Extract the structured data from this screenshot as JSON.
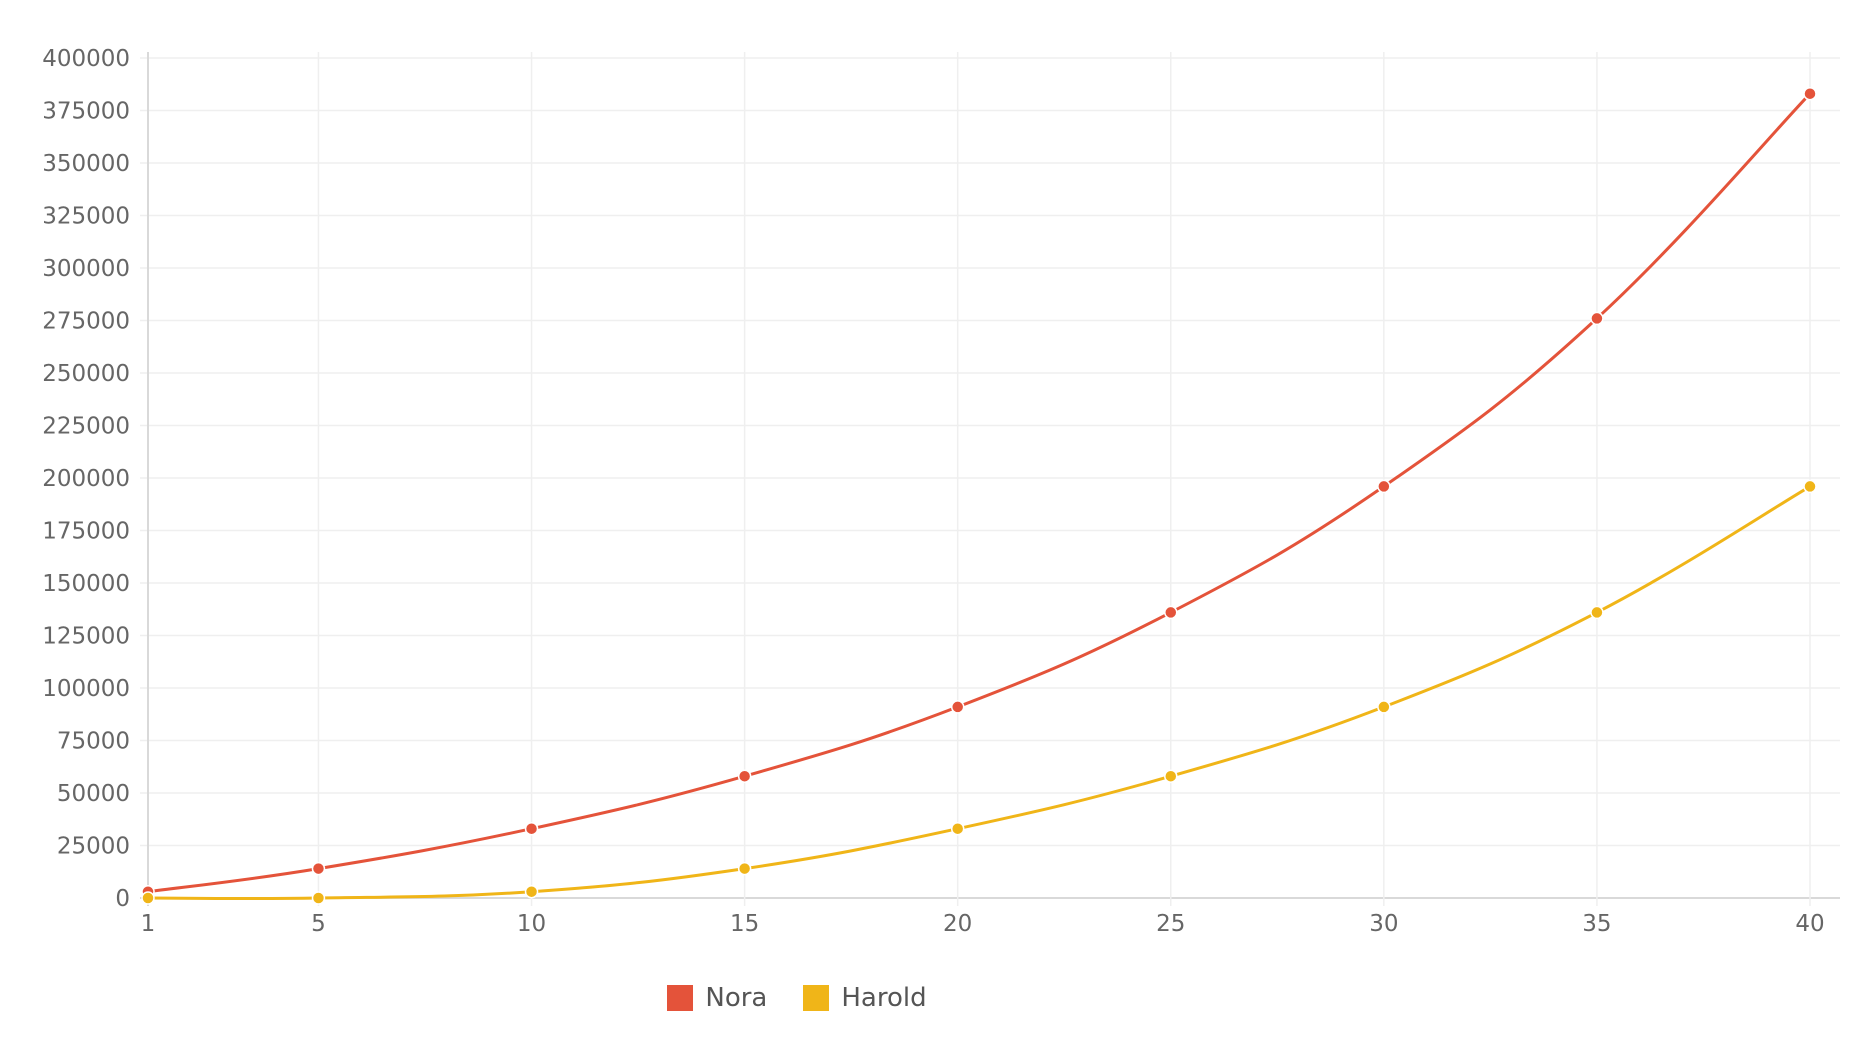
{
  "colors": {
    "nora": "#e4533a",
    "harold": "#f0b518",
    "grid": "#efefef",
    "axis": "#d9d9d9"
  },
  "chart_data": {
    "type": "line",
    "title": "",
    "xlabel": "",
    "ylabel": "",
    "x": [
      1,
      5,
      10,
      15,
      20,
      25,
      30,
      35,
      40
    ],
    "series": [
      {
        "name": "Nora",
        "color": "#e4533a",
        "values": [
          3000,
          14000,
          33000,
          58000,
          91000,
          136000,
          196000,
          276000,
          383000
        ]
      },
      {
        "name": "Harold",
        "color": "#f0b518",
        "values": [
          0,
          0,
          3000,
          14000,
          33000,
          58000,
          91000,
          136000,
          196000
        ]
      }
    ],
    "xlim": [
      1,
      40
    ],
    "ylim": [
      0,
      400000
    ],
    "x_ticks": [
      "1",
      "5",
      "10",
      "15",
      "20",
      "25",
      "30",
      "35",
      "40"
    ],
    "y_ticks": [
      "0",
      "25000",
      "50000",
      "75000",
      "100000",
      "125000",
      "150000",
      "175000",
      "200000",
      "225000",
      "250000",
      "275000",
      "300000",
      "325000",
      "350000",
      "375000",
      "400000"
    ],
    "grid": true,
    "legend": "bottom-center"
  }
}
